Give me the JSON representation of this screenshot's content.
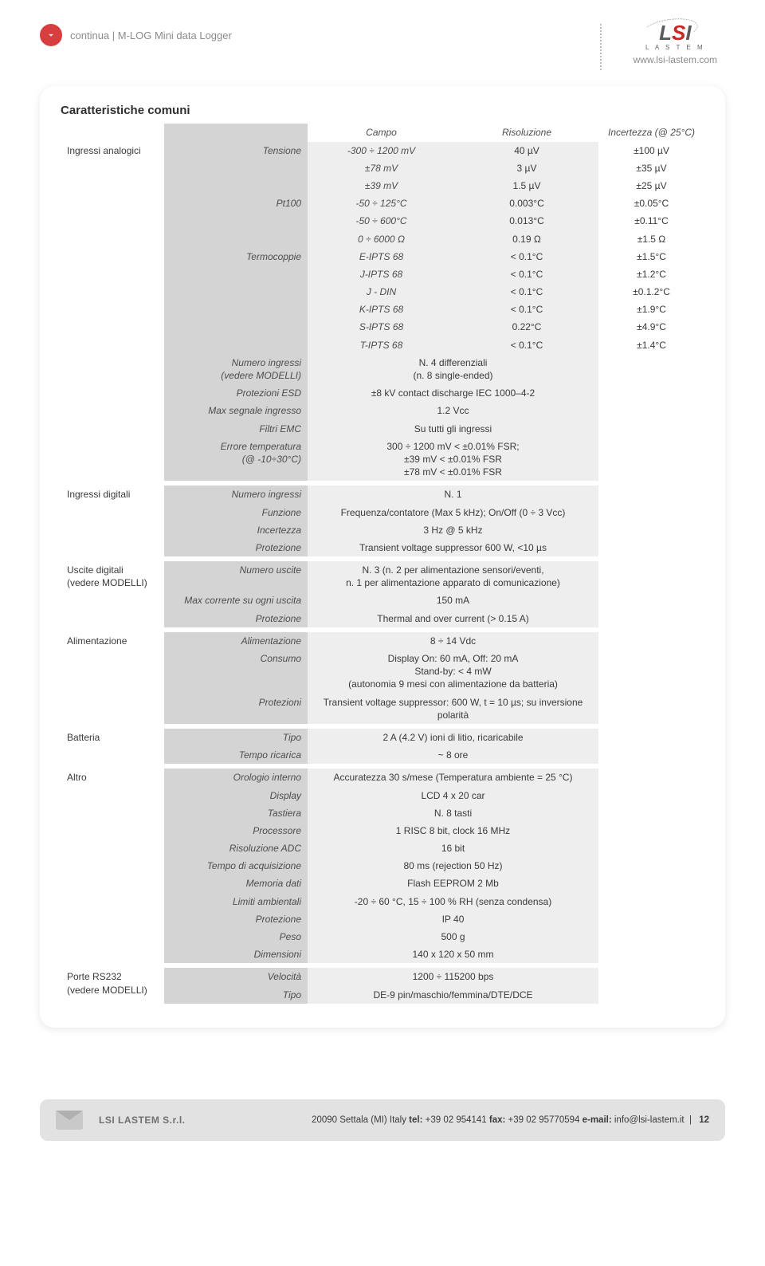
{
  "header": {
    "breadcrumb": "continua | M-LOG Mini data Logger",
    "logo_main": "LSI",
    "logo_sub": "L A S T E M",
    "url": "www.lsi-lastem.com"
  },
  "title": "Caratteristiche comuni",
  "col_headers": {
    "campo": "Campo",
    "risoluzione": "Risoluzione",
    "incertezza": "Incertezza (@ 25°C)"
  },
  "analog": {
    "label": "Ingressi analogici",
    "tensione": {
      "label": "Tensione",
      "rows": [
        {
          "f": "-300 ÷ 1200 mV",
          "r": "40 µV",
          "u": "±100 µV"
        },
        {
          "f": "±78 mV",
          "r": "3 µV",
          "u": "±35 µV"
        },
        {
          "f": "±39 mV",
          "r": "1.5 µV",
          "u": "±25 µV"
        }
      ]
    },
    "pt100": {
      "label": "Pt100",
      "rows": [
        {
          "f": "-50 ÷ 125°C",
          "r": "0.003°C",
          "u": "±0.05°C"
        },
        {
          "f": "-50 ÷ 600°C",
          "r": "0.013°C",
          "u": "±0.11°C"
        },
        {
          "f": "0 ÷ 6000 Ω",
          "r": "0.19 Ω",
          "u": "±1.5 Ω"
        }
      ]
    },
    "thermo": {
      "label": "Termocoppie",
      "rows": [
        {
          "f": "E-IPTS 68",
          "r": "< 0.1°C",
          "u": "±1.5°C"
        },
        {
          "f": "J-IPTS 68",
          "r": "< 0.1°C",
          "u": "±1.2°C"
        },
        {
          "f": "J - DIN",
          "r": "< 0.1°C",
          "u": "±0.1.2°C"
        },
        {
          "f": "K-IPTS 68",
          "r": "< 0.1°C",
          "u": "±1.9°C"
        },
        {
          "f": "S-IPTS 68",
          "r": "0.22°C",
          "u": "±4.9°C"
        },
        {
          "f": "T-IPTS 68",
          "r": "< 0.1°C",
          "u": "±1.4°C"
        }
      ]
    },
    "params": [
      {
        "l": "Numero ingressi\n(vedere MODELLI)",
        "v": "N. 4 differenziali\n(n. 8 single-ended)"
      },
      {
        "l": "Protezioni ESD",
        "v": "±8 kV contact discharge IEC 1000–4-2"
      },
      {
        "l": "Max segnale ingresso",
        "v": "1.2 Vcc"
      },
      {
        "l": "Filtri EMC",
        "v": "Su tutti gli ingressi"
      },
      {
        "l": "Errore temperatura\n(@ -10÷30°C)",
        "v": "300 ÷ 1200 mV < ±0.01% FSR;\n±39 mV < ±0.01% FSR\n±78 mV < ±0.01% FSR"
      }
    ]
  },
  "digital_in": {
    "label": "Ingressi digitali",
    "rows": [
      {
        "l": "Numero ingressi",
        "v": "N. 1"
      },
      {
        "l": "Funzione",
        "v": "Frequenza/contatore (Max 5 kHz); On/Off (0 ÷ 3 Vcc)"
      },
      {
        "l": "Incertezza",
        "v": "3 Hz @ 5 kHz"
      },
      {
        "l": "Protezione",
        "v": "Transient voltage suppressor 600 W, <10 µs"
      }
    ]
  },
  "digital_out": {
    "label": "Uscite digitali\n(vedere MODELLI)",
    "rows": [
      {
        "l": "Numero uscite",
        "v": "N. 3 (n. 2 per alimentazione sensori/eventi,\nn. 1 per alimentazione apparato di comunicazione)"
      },
      {
        "l": "Max corrente su ogni uscita",
        "v": "150 mA"
      },
      {
        "l": "Protezione",
        "v": "Thermal and over current (> 0.15 A)"
      }
    ]
  },
  "power": {
    "label": "Alimentazione",
    "rows": [
      {
        "l": "Alimentazione",
        "v": "8 ÷ 14 Vdc"
      },
      {
        "l": "Consumo",
        "v": "Display On: 60 mA, Off: 20 mA\nStand-by: < 4 mW\n(autonomia 9 mesi con alimentazione da batteria)"
      },
      {
        "l": "Protezioni",
        "v": "Transient voltage suppressor: 600 W, t = 10 µs; su inversione polarità"
      }
    ]
  },
  "battery": {
    "label": "Batteria",
    "rows": [
      {
        "l": "Tipo",
        "v": "2 A (4.2 V) ioni di litio, ricaricabile"
      },
      {
        "l": "Tempo ricarica",
        "v": "~ 8 ore"
      }
    ]
  },
  "other": {
    "label": "Altro",
    "rows": [
      {
        "l": "Orologio interno",
        "v": "Accuratezza 30 s/mese (Temperatura ambiente = 25 °C)"
      },
      {
        "l": "Display",
        "v": "LCD 4 x 20 car"
      },
      {
        "l": "Tastiera",
        "v": "N. 8 tasti"
      },
      {
        "l": "Processore",
        "v": "1 RISC 8 bit, clock 16 MHz"
      },
      {
        "l": "Risoluzione ADC",
        "v": "16 bit"
      },
      {
        "l": "Tempo di acquisizione",
        "v": "80 ms (rejection 50 Hz)"
      },
      {
        "l": "Memoria dati",
        "v": "Flash EEPROM 2 Mb"
      },
      {
        "l": "Limiti ambientali",
        "v": "-20 ÷ 60 °C, 15 ÷ 100 % RH (senza condensa)"
      },
      {
        "l": "Protezione",
        "v": "IP 40"
      },
      {
        "l": "Peso",
        "v": "500 g"
      },
      {
        "l": "Dimensioni",
        "v": "140 x 120 x 50 mm"
      }
    ]
  },
  "rs232": {
    "label": "Porte RS232\n(vedere MODELLI)",
    "rows": [
      {
        "l": "Velocità",
        "v": "1200 ÷ 115200 bps"
      },
      {
        "l": "Tipo",
        "v": "DE-9 pin/maschio/femmina/DTE/DCE"
      }
    ]
  },
  "footer": {
    "company": "LSI LASTEM S.r.l.",
    "addr": "20090 Settala (MI) Italy ",
    "tel_label": "tel: ",
    "tel": "+39 02 954141 ",
    "fax_label": "fax: ",
    "fax": "+39 02 95770594 ",
    "email_label": "e-mail: ",
    "email": "info@lsi-lastem.it",
    "page": "12"
  },
  "colors": {
    "param_bg": "#d4d4d4",
    "value_bg": "#eeeeee",
    "accent": "#d93e3e"
  }
}
